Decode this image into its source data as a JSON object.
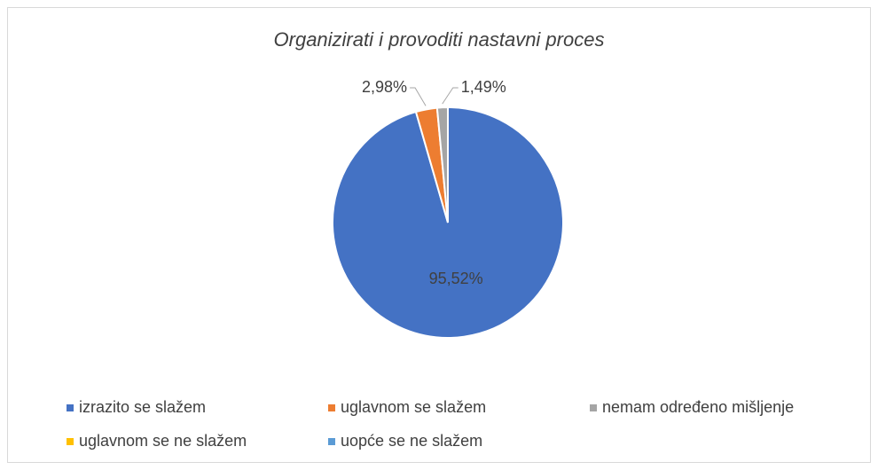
{
  "chart_data": {
    "type": "pie",
    "title": "Organizirati i provoditi nastavni proces",
    "categories": [
      "izrazito se slažem",
      "uglavnom se slažem",
      "nemam određeno mišljenje",
      "uglavnom se ne slažem",
      "uopće se ne slažem"
    ],
    "values": [
      95.52,
      2.98,
      1.49,
      0,
      0
    ],
    "value_labels": [
      "95,52%",
      "2,98%",
      "1,49%",
      null,
      null
    ],
    "colors": [
      "#4472c4",
      "#ed7d31",
      "#a5a5a5",
      "#ffc000",
      "#5b9bd5"
    ],
    "legend": "bottom"
  }
}
